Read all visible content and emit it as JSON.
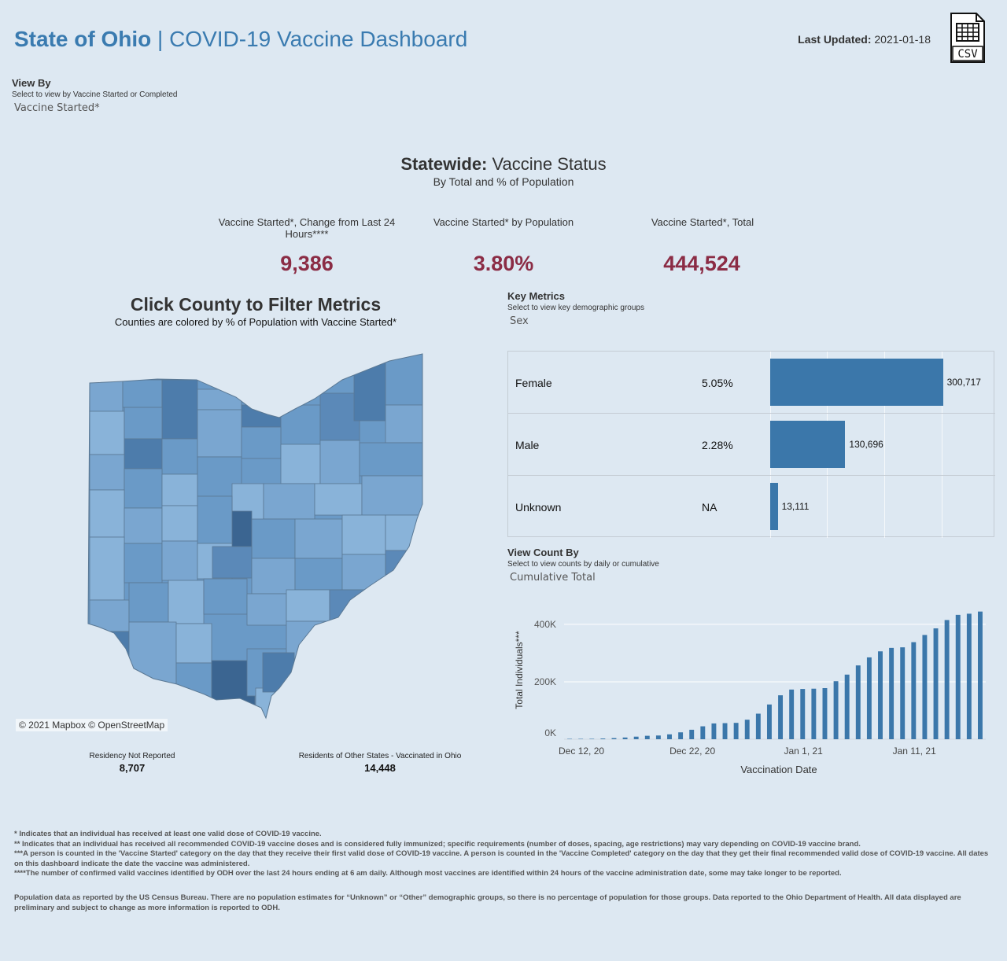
{
  "header": {
    "title_bold": "State of Ohio",
    "title_sep": " | ",
    "title_rest": "COVID-19 Vaccine Dashboard",
    "last_updated_label": "Last Updated:",
    "last_updated_value": "2021-01-18",
    "csv_label": "CSV"
  },
  "view_by": {
    "title": "View By",
    "subtitle": "Select to view by Vaccine Started or Completed",
    "value": "Vaccine Started*"
  },
  "statewide": {
    "title_bold": "Statewide:",
    "title_rest": " Vaccine Status",
    "subtitle": "By Total and % of Population",
    "kpis": [
      {
        "label": "Vaccine Started*, Change from Last 24 Hours****",
        "value": "9,386"
      },
      {
        "label": "Vaccine Started* by Population",
        "value": "3.80%"
      },
      {
        "label": "Vaccine Started*, Total",
        "value": "444,524"
      }
    ]
  },
  "map": {
    "title": "Click County to Filter Metrics",
    "subtitle": "Counties are colored by % of Population with Vaccine Started*",
    "credit": "© 2021 Mapbox © OpenStreetMap",
    "residency_not_reported_label": "Residency Not Reported",
    "residency_not_reported_value": "8,707",
    "other_states_label": "Residents of Other States - Vaccinated in Ohio",
    "other_states_value": "14,448",
    "colors": {
      "light": "#89b3d9",
      "mid": "#6a9ac7",
      "dark": "#4d7cab",
      "darkest": "#3b6591"
    }
  },
  "key_metrics": {
    "title": "Key Metrics",
    "subtitle": "Select to view key demographic groups",
    "value": "Sex",
    "rows": [
      {
        "label": "Female",
        "pct": "5.05%",
        "count": 300717,
        "count_label": "300,717"
      },
      {
        "label": "Male",
        "pct": "2.28%",
        "count": 130696,
        "count_label": "130,696"
      },
      {
        "label": "Unknown",
        "pct": "NA",
        "count": 13111,
        "count_label": "13,111"
      }
    ],
    "bar_color": "#3b77aa"
  },
  "view_count": {
    "title": "View Count By",
    "subtitle": "Select to view counts by daily or cumulative",
    "value": "Cumulative Total"
  },
  "chart_data": {
    "type": "bar",
    "title": "",
    "xlabel": "Vaccination Date",
    "ylabel": "Total Individuals***",
    "ylim": [
      0,
      460000
    ],
    "yticks": [
      {
        "v": 0,
        "label": "0K"
      },
      {
        "v": 200000,
        "label": "200K"
      },
      {
        "v": 400000,
        "label": "400K"
      }
    ],
    "xticks": [
      {
        "i": 0,
        "label": "Dec 12, 20"
      },
      {
        "i": 10,
        "label": "Dec 22, 20"
      },
      {
        "i": 20,
        "label": "Jan 1, 21"
      },
      {
        "i": 30,
        "label": "Jan 11, 21"
      }
    ],
    "categories": [
      "2020-12-12",
      "2020-12-13",
      "2020-12-14",
      "2020-12-15",
      "2020-12-16",
      "2020-12-17",
      "2020-12-18",
      "2020-12-19",
      "2020-12-20",
      "2020-12-21",
      "2020-12-22",
      "2020-12-23",
      "2020-12-24",
      "2020-12-25",
      "2020-12-26",
      "2020-12-27",
      "2020-12-28",
      "2020-12-29",
      "2020-12-30",
      "2020-12-31",
      "2021-01-01",
      "2021-01-02",
      "2021-01-03",
      "2021-01-04",
      "2021-01-05",
      "2021-01-06",
      "2021-01-07",
      "2021-01-08",
      "2021-01-09",
      "2021-01-10",
      "2021-01-11",
      "2021-01-12",
      "2021-01-13",
      "2021-01-14",
      "2021-01-15",
      "2021-01-16",
      "2021-01-17",
      "2021-01-18"
    ],
    "values": [
      0,
      500,
      1500,
      2500,
      4000,
      6000,
      9000,
      12000,
      13000,
      17000,
      24000,
      33000,
      45000,
      55000,
      56000,
      57000,
      68000,
      89000,
      121000,
      153000,
      173000,
      175000,
      176000,
      178000,
      202000,
      225000,
      257000,
      285000,
      306000,
      318000,
      320000,
      338000,
      363000,
      386000,
      415000,
      433000,
      437000,
      444524
    ],
    "color": "#3b77aa"
  },
  "footnotes": [
    "* Indicates that an individual has received at least one valid dose of COVID-19 vaccine.",
    "** Indicates that an individual has received all recommended COVID-19 vaccine doses and is considered fully immunized; specific requirements (number of doses, spacing, age restrictions) may vary depending on COVID-19 vaccine brand.",
    "***A person is counted in the 'Vaccine Started' category on the day that they receive their first valid dose of COVID-19 vaccine.  A person is counted in the 'Vaccine Completed' category on the day that they get their final recommended valid dose of COVID-19 vaccine. All dates on this dashboard indicate the date the vaccine was administered.",
    "****The number of confirmed valid vaccines identified by ODH over the last 24 hours ending at 6 am daily. Although most vaccines are identified within 24 hours of the vaccine administration date, some may take longer to be reported."
  ],
  "population_note": "Population data as reported by the US Census Bureau. There are no population estimates for “Unknown” or “Other” demographic groups, so there is no percentage of population for those groups.  Data reported to the Ohio Department of Health.  All data displayed are preliminary and subject to change as more information is reported to ODH."
}
